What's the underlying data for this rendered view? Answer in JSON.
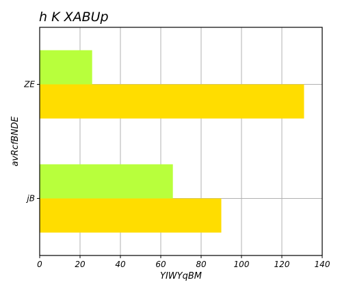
{
  "chart_data": {
    "type": "bar",
    "orientation": "horizontal",
    "title": "h  K   XABUp",
    "xlabel": "YIWYqBM",
    "ylabel": "avRcfBNDE",
    "categories": [
      "ZE",
      "jB"
    ],
    "series": [
      {
        "color": "#b8ff3c",
        "values": [
          26,
          66
        ]
      },
      {
        "color": "#ffdd00",
        "values": [
          131,
          90
        ]
      }
    ],
    "xlim": [
      0,
      140
    ],
    "xticks": [
      0,
      20,
      40,
      60,
      80,
      100,
      120,
      140
    ],
    "grid": true
  }
}
